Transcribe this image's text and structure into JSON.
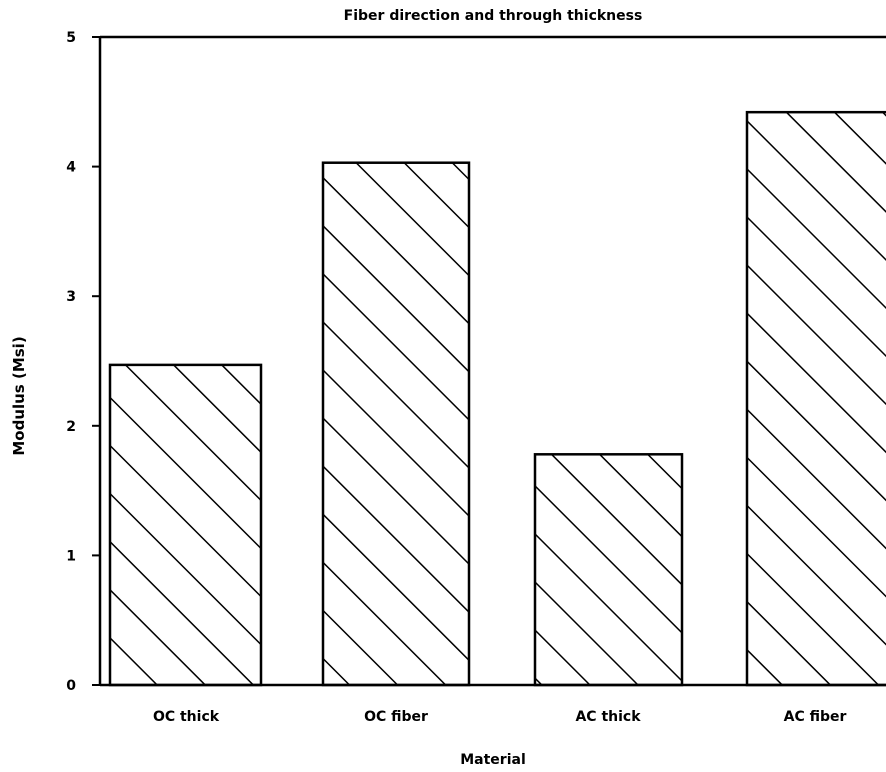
{
  "chart_data": {
    "type": "bar",
    "title": "Fiber direction and through thickness",
    "xlabel": "Material",
    "ylabel": "Modulus (Msi)",
    "categories": [
      "OC thick",
      "OC fiber",
      "AC thick",
      "AC fiber"
    ],
    "values": [
      2.47,
      4.03,
      1.78,
      4.42
    ],
    "ylim": [
      0,
      5
    ],
    "yticks": [
      "0",
      "1",
      "2",
      "3",
      "4",
      "5"
    ],
    "grid": false,
    "legend": "none",
    "bar_fill": "diagonal hatch",
    "colors": {
      "stroke": "#000000",
      "background": "#ffffff"
    }
  }
}
